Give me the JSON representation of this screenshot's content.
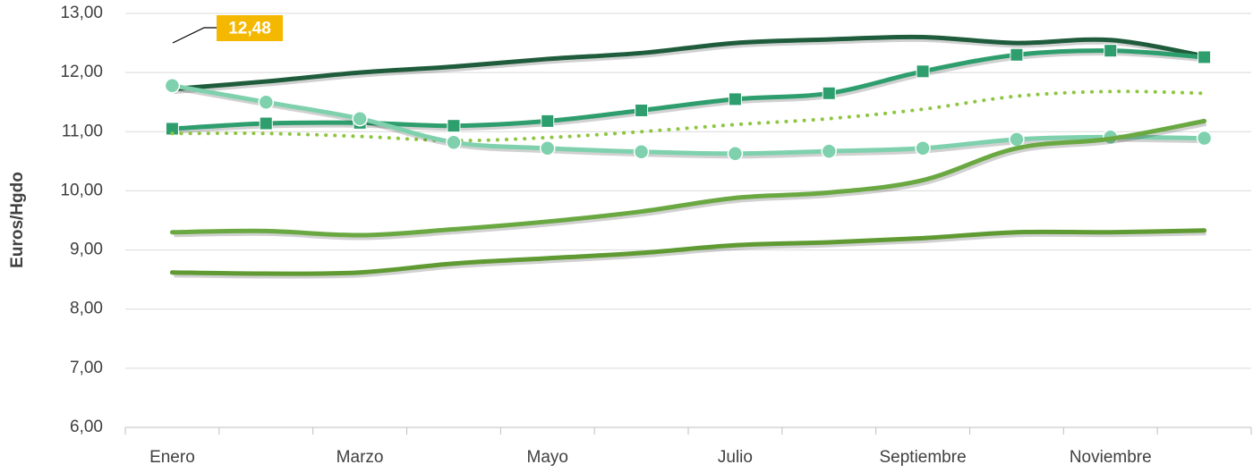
{
  "chart_data": {
    "type": "line",
    "y_label": "Euros/Hgdo",
    "categories": [
      "Enero",
      null,
      "Marzo",
      null,
      "Mayo",
      null,
      "Julio",
      null,
      "Septiembre",
      null,
      "Noviembre",
      null
    ],
    "ylim": [
      6,
      13
    ],
    "yticks": [
      {
        "value": 6,
        "label": "6,00"
      },
      {
        "value": 7,
        "label": "7,00"
      },
      {
        "value": 8,
        "label": "8,00"
      },
      {
        "value": 9,
        "label": "9,00"
      },
      {
        "value": 10,
        "label": "10,00"
      },
      {
        "value": 11,
        "label": "11,00"
      },
      {
        "value": 12,
        "label": "12,00"
      },
      {
        "value": 13,
        "label": "13,00"
      }
    ],
    "grid": true,
    "smooth": true,
    "series": [
      {
        "color": "#1f5c3c",
        "marker": "none",
        "dash": "solid",
        "values": [
          11.72,
          11.85,
          12.0,
          12.1,
          12.23,
          12.33,
          12.5,
          12.56,
          12.6,
          12.5,
          12.55,
          12.28
        ]
      },
      {
        "color": "#2e9e6e",
        "marker": "square",
        "dash": "solid",
        "values": [
          11.05,
          11.14,
          11.15,
          11.1,
          11.18,
          11.36,
          11.55,
          11.65,
          12.02,
          12.3,
          12.37,
          12.26
        ]
      },
      {
        "color": "#8dc63f",
        "marker": "none",
        "dash": "dotted",
        "values": [
          10.97,
          10.97,
          10.92,
          10.85,
          10.9,
          11.0,
          11.12,
          11.22,
          11.38,
          11.6,
          11.68,
          11.65
        ]
      },
      {
        "color": "#7fd1ae",
        "marker": "circle",
        "dash": "solid",
        "values": [
          11.78,
          11.5,
          11.22,
          10.82,
          10.72,
          10.66,
          10.63,
          10.67,
          10.72,
          10.87,
          10.91,
          10.89
        ]
      },
      {
        "color": "#6aa842",
        "marker": "none",
        "dash": "solid",
        "values": [
          9.3,
          9.32,
          9.25,
          9.35,
          9.48,
          9.65,
          9.88,
          9.97,
          10.18,
          10.72,
          10.88,
          11.18
        ]
      },
      {
        "color": "#5f9a32",
        "marker": "none",
        "dash": "solid",
        "values": [
          8.62,
          8.6,
          8.62,
          8.77,
          8.86,
          8.95,
          9.08,
          9.13,
          9.2,
          9.3,
          9.3,
          9.33
        ]
      }
    ],
    "annotations": [
      {
        "text": "12,48",
        "color": "#f5b800"
      }
    ]
  }
}
